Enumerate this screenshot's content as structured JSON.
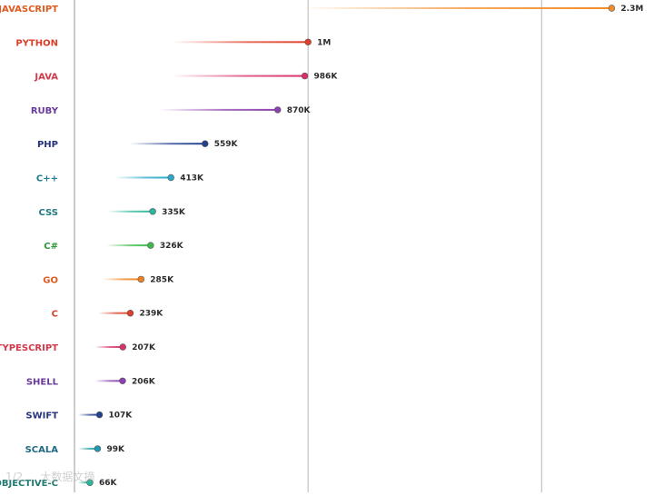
{
  "chart_data": {
    "type": "bar",
    "title": "",
    "xlabel": "",
    "ylabel": "",
    "xlim": [
      0,
      2450000
    ],
    "grid": "vertical",
    "categories": [
      "JAVASCRIPT",
      "PYTHON",
      "JAVA",
      "RUBY",
      "PHP",
      "C++",
      "CSS",
      "C#",
      "GO",
      "C",
      "TYPESCRIPT",
      "SHELL",
      "SWIFT",
      "SCALA",
      "OBJECTIVE-C"
    ],
    "values": [
      2300000,
      1000000,
      986000,
      870000,
      559000,
      413000,
      335000,
      326000,
      285000,
      239000,
      207000,
      206000,
      107000,
      99000,
      66000
    ],
    "value_labels": [
      "2.3M",
      "1M",
      "986K",
      "870K",
      "559K",
      "413K",
      "335K",
      "326K",
      "285K",
      "239K",
      "207K",
      "206K",
      "107K",
      "99K",
      "66K"
    ],
    "colors": [
      "#f28c28",
      "#e0402a",
      "#d9306b",
      "#8e3fb0",
      "#23408e",
      "#2aa8c8",
      "#2bb79a",
      "#3fb84a",
      "#f07f1e",
      "#e0402a",
      "#d9306b",
      "#8e3fb0",
      "#23408e",
      "#1f9ab0",
      "#2bb79a"
    ],
    "label_colors": [
      "#e05a20",
      "#d8402c",
      "#d03a4a",
      "#6a3a9a",
      "#26327a",
      "#1f7a90",
      "#1f7a80",
      "#2a9a3a",
      "#e05a20",
      "#d8402c",
      "#d03a4a",
      "#6a3a9a",
      "#26327a",
      "#1f6a80",
      "#1f7a70"
    ]
  },
  "watermark": "1/2 ... 大数据文摘"
}
